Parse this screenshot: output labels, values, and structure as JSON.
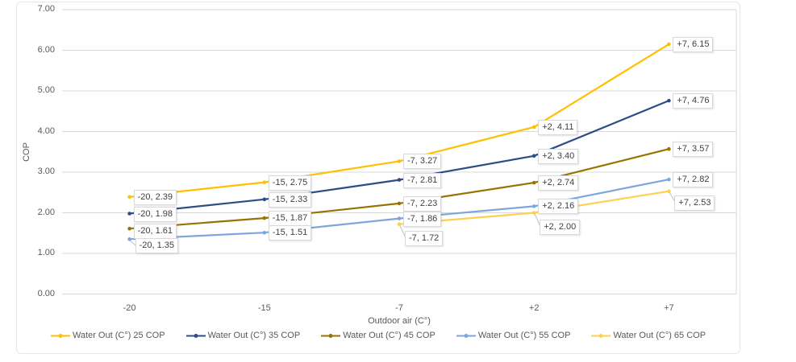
{
  "chart_data": {
    "type": "line",
    "title": "",
    "xlabel": "Outdoor air (C°)",
    "ylabel": "COP",
    "categories": [
      "-20",
      "-15",
      "-7",
      "+2",
      "+7"
    ],
    "y_ticks": [
      "0.00",
      "1.00",
      "2.00",
      "3.00",
      "4.00",
      "5.00",
      "6.00",
      "7.00"
    ],
    "ylim": [
      0,
      7
    ],
    "grid": true,
    "legend_position": "bottom",
    "data_labels": true,
    "data_label_format": "{x}, {y}",
    "colors": {
      "gridline": "#D9D9D9",
      "chart_border": "#E8E8E8",
      "axis_text": "#595959",
      "label_text": "#404040",
      "label_border": "#D9D9D9",
      "leader_line": "#BFBFBF"
    },
    "series": [
      {
        "name": "Water Out (C°) 25 COP",
        "color": "#FFC000",
        "values": [
          2.39,
          2.75,
          3.27,
          4.11,
          6.15
        ],
        "label_offsets": [
          [
            5,
            0
          ],
          [
            5,
            0
          ],
          [
            5,
            0
          ],
          [
            5,
            0
          ],
          [
            5,
            0
          ]
        ]
      },
      {
        "name": "Water Out (C°) 35 COP",
        "color": "#2E4D87",
        "values": [
          1.98,
          2.33,
          2.81,
          3.4,
          4.76
        ],
        "label_offsets": [
          [
            5,
            0
          ],
          [
            5,
            0
          ],
          [
            5,
            0
          ],
          [
            5,
            0
          ],
          [
            5,
            0
          ]
        ]
      },
      {
        "name": "Water Out (C°) 45 COP",
        "color": "#997300",
        "values": [
          1.61,
          1.87,
          2.23,
          2.74,
          3.57
        ],
        "label_offsets": [
          [
            5,
            3
          ],
          [
            5,
            0
          ],
          [
            5,
            0
          ],
          [
            5,
            0
          ],
          [
            5,
            0
          ]
        ]
      },
      {
        "name": "Water Out (C°) 55 COP",
        "color": "#7CA6DC",
        "values": [
          1.35,
          1.51,
          1.86,
          2.16,
          2.82
        ],
        "label_offsets": [
          [
            7,
            8
          ],
          [
            5,
            0
          ],
          [
            5,
            0
          ],
          [
            5,
            0
          ],
          [
            5,
            0
          ]
        ]
      },
      {
        "name": "Water Out (C°) 65 COP",
        "color": "#FFD04D",
        "values": [
          null,
          null,
          1.72,
          2.0,
          2.53
        ],
        "label_offsets": [
          null,
          null,
          [
            7,
            17
          ],
          [
            7,
            17
          ],
          [
            7,
            14
          ]
        ]
      }
    ]
  }
}
